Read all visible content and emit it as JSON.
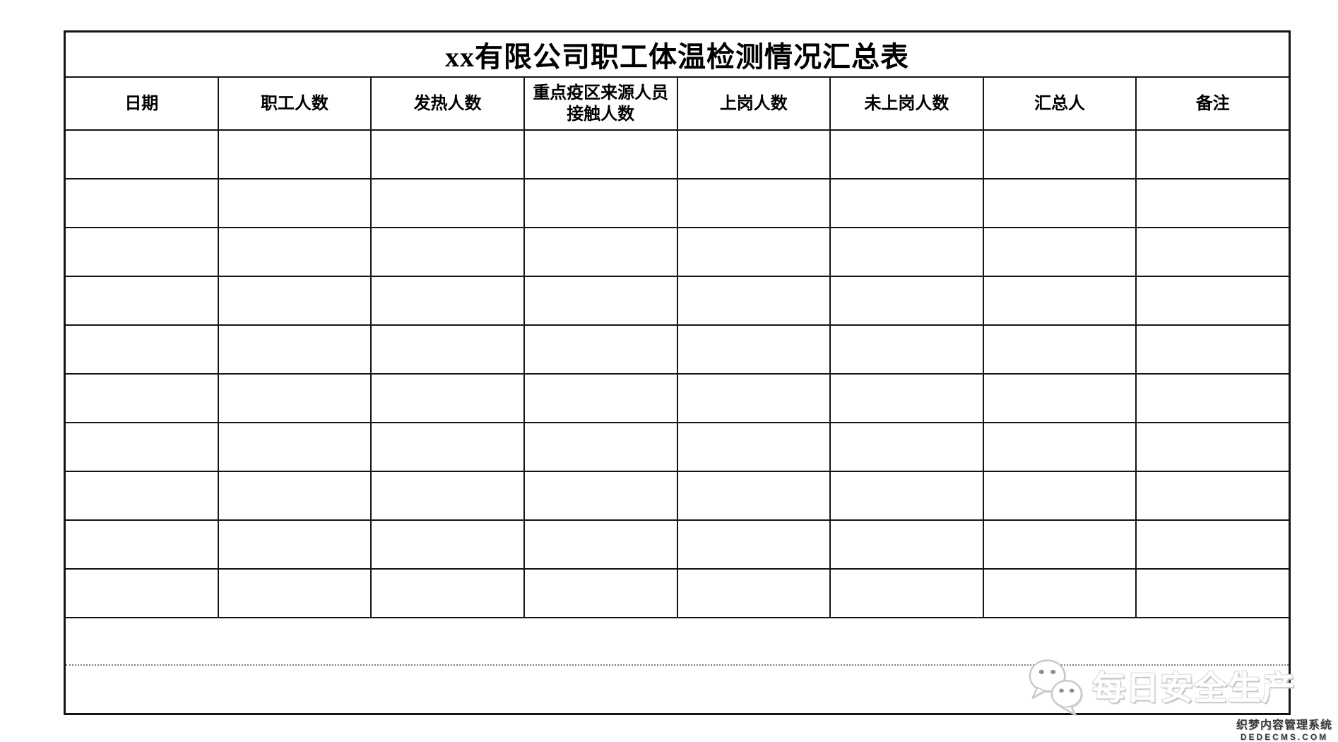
{
  "document": {
    "title": "xx有限公司职工体温检测情况汇总表",
    "table": {
      "columns": [
        "日期",
        "职工人数",
        "发热人数",
        "重点疫区来源人员\n接触人数",
        "上岗人数",
        "未上岗人数",
        "汇总人",
        "备注"
      ],
      "empty_data_rows": 10,
      "footer_merged_rows": 2
    }
  },
  "watermark": {
    "icon": "wechat-icon",
    "text": "每日安全生产"
  },
  "credit": {
    "line1": "织梦内容管理系统",
    "line2": "DEDECMS.COM"
  },
  "colors": {
    "background": "#ffffff",
    "table_border": "#141414",
    "dotted_divider": "#7d7d7d",
    "watermark_text": "#ffffff",
    "watermark_shadow": "#c6c6c6",
    "credit_text": "#383838"
  }
}
